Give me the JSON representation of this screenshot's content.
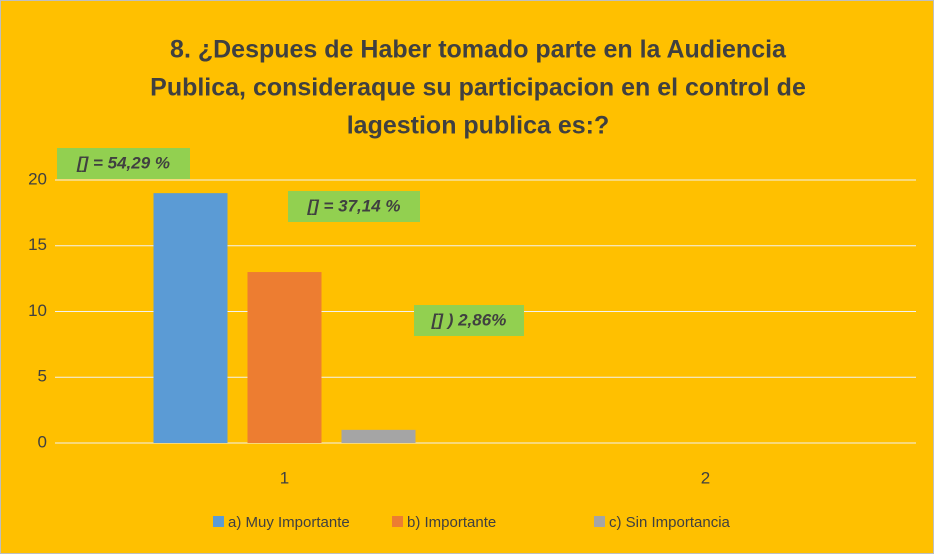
{
  "chart_data": {
    "type": "bar",
    "title": [
      "8.  ¿Despues de Haber tomado  parte en la Audiencia",
      "Publica, consideraque su participacion en el control de",
      "lagestion publica es:?"
    ],
    "categories": [
      "1",
      "2"
    ],
    "series": [
      {
        "name": "a) Muy Importante",
        "color": "#5B9BD5",
        "values": [
          19,
          null
        ]
      },
      {
        "name": "b) Importante",
        "color": "#ED7D31",
        "values": [
          13,
          null
        ]
      },
      {
        "name": "c) Sin Importancia",
        "color": "#A5A5A5",
        "values": [
          1,
          null
        ]
      }
    ],
    "annotations": [
      "[] = 54,29 %",
      "[] = 37,14 %",
      "[] ) 2,86%"
    ],
    "ylim": [
      0,
      20
    ],
    "yticks": [
      0,
      5,
      10,
      15,
      20
    ],
    "grid": true,
    "legend": "bottom"
  }
}
